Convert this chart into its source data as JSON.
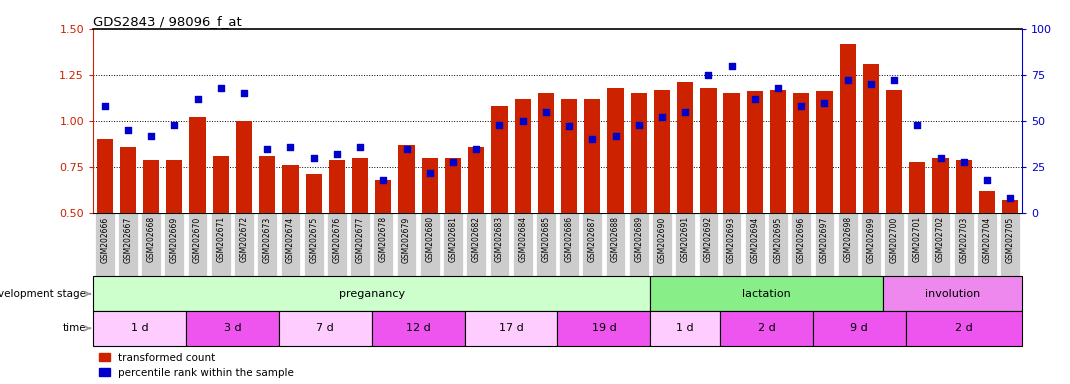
{
  "title": "GDS2843 / 98096_f_at",
  "samples": [
    "GSM202666",
    "GSM202667",
    "GSM202668",
    "GSM202669",
    "GSM202670",
    "GSM202671",
    "GSM202672",
    "GSM202673",
    "GSM202674",
    "GSM202675",
    "GSM202676",
    "GSM202677",
    "GSM202678",
    "GSM202679",
    "GSM202680",
    "GSM202681",
    "GSM202682",
    "GSM202683",
    "GSM202684",
    "GSM202685",
    "GSM202686",
    "GSM202687",
    "GSM202688",
    "GSM202689",
    "GSM202690",
    "GSM202691",
    "GSM202692",
    "GSM202693",
    "GSM202694",
    "GSM202695",
    "GSM202696",
    "GSM202697",
    "GSM202698",
    "GSM202699",
    "GSM202700",
    "GSM202701",
    "GSM202702",
    "GSM202703",
    "GSM202704",
    "GSM202705"
  ],
  "bar_values": [
    0.9,
    0.86,
    0.79,
    0.79,
    1.02,
    0.81,
    1.0,
    0.81,
    0.76,
    0.71,
    0.79,
    0.8,
    0.68,
    0.87,
    0.8,
    0.8,
    0.86,
    1.08,
    1.12,
    1.15,
    1.12,
    1.12,
    1.18,
    1.15,
    1.17,
    1.21,
    1.18,
    1.15,
    1.16,
    1.17,
    1.15,
    1.16,
    1.42,
    1.31,
    1.17,
    0.78,
    0.8,
    0.79,
    0.62,
    0.57
  ],
  "dot_values": [
    58,
    45,
    42,
    48,
    62,
    68,
    65,
    35,
    36,
    30,
    32,
    36,
    18,
    35,
    22,
    28,
    35,
    48,
    50,
    55,
    47,
    40,
    42,
    48,
    52,
    55,
    75,
    80,
    62,
    68,
    58,
    60,
    72,
    70,
    72,
    48,
    30,
    28,
    18,
    8
  ],
  "ylim_left": [
    0.5,
    1.5
  ],
  "ylim_right": [
    0,
    100
  ],
  "yticks_left": [
    0.5,
    0.75,
    1.0,
    1.25,
    1.5
  ],
  "yticks_right": [
    0,
    25,
    50,
    75,
    100
  ],
  "bar_color": "#cc2200",
  "dot_color": "#0000cc",
  "hline_vals": [
    0.75,
    1.0,
    1.25
  ],
  "development_stages": [
    {
      "label": "preganancy",
      "start": 0,
      "end": 24,
      "color": "#ccffcc"
    },
    {
      "label": "lactation",
      "start": 24,
      "end": 34,
      "color": "#88ee88"
    },
    {
      "label": "involution",
      "start": 34,
      "end": 40,
      "color": "#ee88ee"
    }
  ],
  "time_periods": [
    {
      "label": "1 d",
      "start": 0,
      "end": 4,
      "color": "#ffccff"
    },
    {
      "label": "3 d",
      "start": 4,
      "end": 8,
      "color": "#ee55ee"
    },
    {
      "label": "7 d",
      "start": 8,
      "end": 12,
      "color": "#ffccff"
    },
    {
      "label": "12 d",
      "start": 12,
      "end": 16,
      "color": "#ee55ee"
    },
    {
      "label": "17 d",
      "start": 16,
      "end": 20,
      "color": "#ffccff"
    },
    {
      "label": "19 d",
      "start": 20,
      "end": 24,
      "color": "#ee55ee"
    },
    {
      "label": "1 d",
      "start": 24,
      "end": 27,
      "color": "#ffccff"
    },
    {
      "label": "2 d",
      "start": 27,
      "end": 31,
      "color": "#ee55ee"
    },
    {
      "label": "9 d",
      "start": 31,
      "end": 35,
      "color": "#ee55ee"
    },
    {
      "label": "2 d",
      "start": 35,
      "end": 40,
      "color": "#ee55ee"
    }
  ],
  "legend_bar_label": "transformed count",
  "legend_dot_label": "percentile rank within the sample",
  "dev_stage_label": "development stage",
  "time_label": "time",
  "tick_bg_color": "#cccccc",
  "arrow_color": "#999999"
}
